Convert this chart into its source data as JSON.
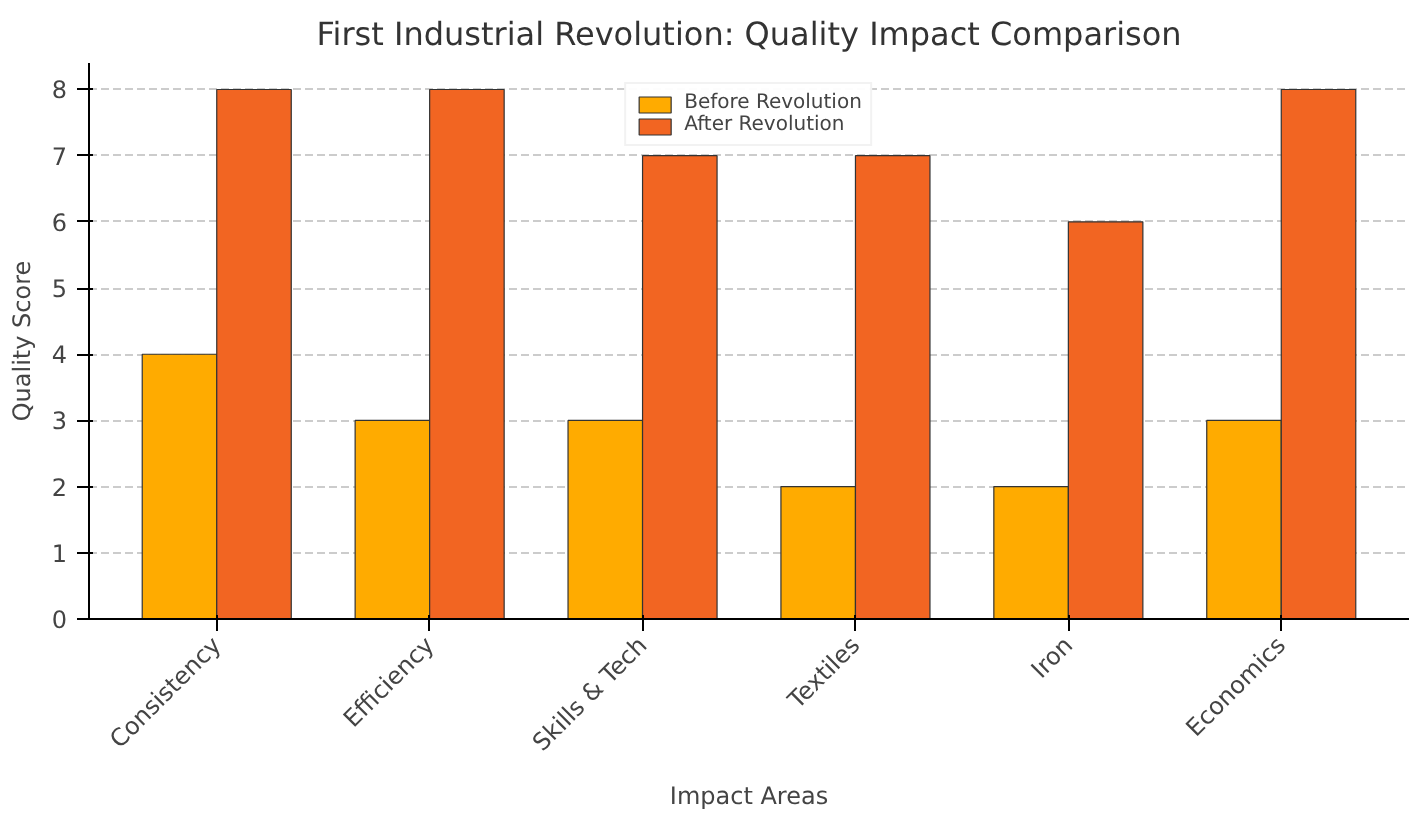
{
  "chart_data": {
    "type": "bar",
    "title": "First Industrial Revolution: Quality Impact Comparison",
    "xlabel": "Impact Areas",
    "ylabel": "Quality Score",
    "categories": [
      "Consistency",
      "Efficiency",
      "Skills & Tech",
      "Textiles",
      "Iron",
      "Economics"
    ],
    "series": [
      {
        "name": "Before Revolution",
        "color": "#ffab00",
        "values": [
          4,
          3,
          3,
          2,
          2,
          3
        ]
      },
      {
        "name": "After Revolution",
        "color": "#f26522",
        "values": [
          8,
          8,
          7,
          7,
          6,
          8
        ]
      }
    ],
    "ylim": [
      0,
      8.4
    ],
    "yticks": [
      0,
      1,
      2,
      3,
      4,
      5,
      6,
      7,
      8
    ],
    "grid": "y",
    "legend": "top"
  }
}
